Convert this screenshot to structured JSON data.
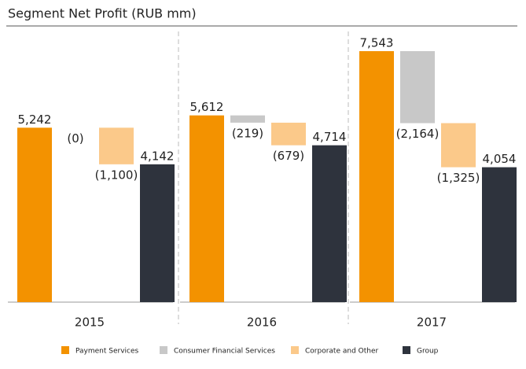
{
  "chart_data": {
    "type": "waterfall",
    "title": "Segment Net Profit (RUB mm)",
    "categories": [
      "2015",
      "2016",
      "2017"
    ],
    "series": [
      {
        "name": "Payment Services",
        "color": "#f39200",
        "values": [
          5242,
          5612,
          7543
        ],
        "value_labels": [
          "5,242",
          "5,612",
          "7,543"
        ]
      },
      {
        "name": "Consumer Financial Services",
        "color": "#c8c8c8",
        "values": [
          0,
          -219,
          -2164
        ],
        "value_labels": [
          "(0)",
          "(219)",
          "(2,164)"
        ]
      },
      {
        "name": "Corporate and Other",
        "color": "#fbc98a",
        "values": [
          -1100,
          -679,
          -1325
        ],
        "value_labels": [
          "(1,100)",
          "(679)",
          "(1,325)"
        ]
      },
      {
        "name": "Group",
        "color": "#2e333d",
        "values": [
          4142,
          4714,
          4054
        ],
        "value_labels": [
          "4,142",
          "4,714",
          "4,054"
        ]
      }
    ],
    "legend": "bottom"
  }
}
